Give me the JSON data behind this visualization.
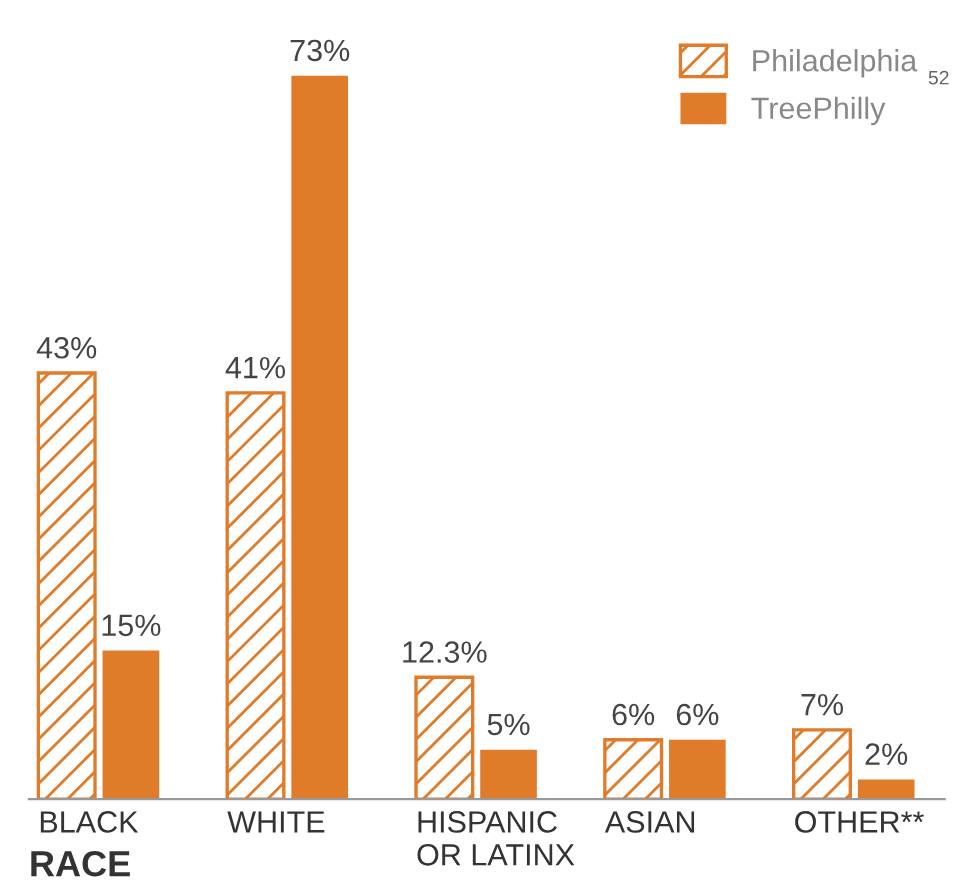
{
  "chart_data": {
    "type": "bar",
    "xlabel": "RACE",
    "categories": [
      "BLACK",
      "WHITE",
      "HISPANIC\nOR LATINX",
      "ASIAN",
      "OTHER**"
    ],
    "series": [
      {
        "name": "Philadelphia",
        "color": "#e07b2a",
        "values": [
          43,
          41,
          12.3,
          6,
          7
        ],
        "value_labels": [
          "43%",
          "41%",
          "12.3%",
          "6%",
          "7%"
        ]
      },
      {
        "name": "TreePhilly",
        "color": "#e07b2a",
        "values": [
          15,
          73,
          5,
          6,
          2
        ],
        "value_labels": [
          "15%",
          "73%",
          "5%",
          "6%",
          "2%"
        ]
      }
    ],
    "legend": "top right",
    "grid": false,
    "annotations": [
      "52"
    ]
  }
}
